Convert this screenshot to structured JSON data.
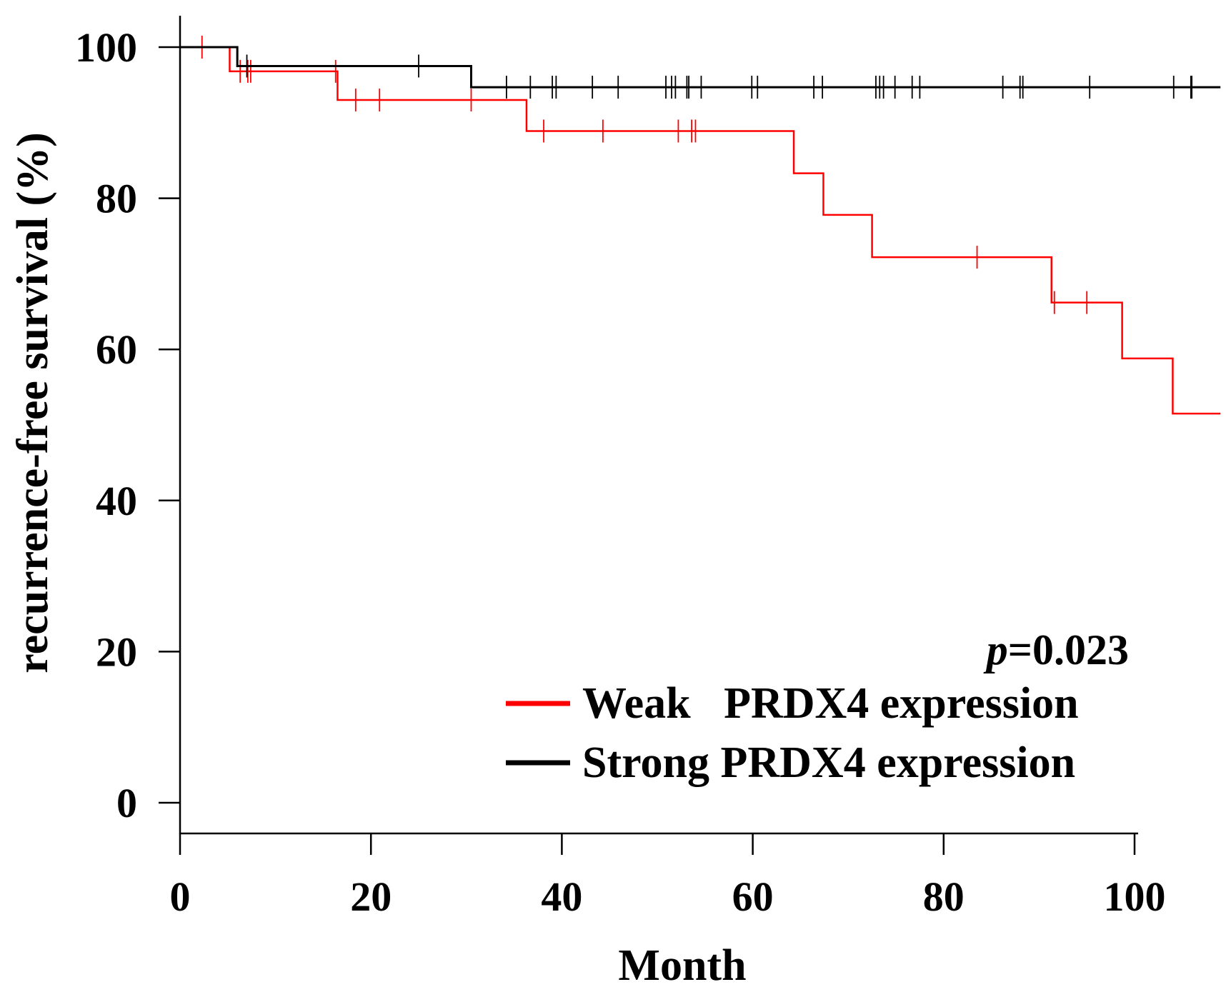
{
  "chart_data": {
    "type": "line",
    "step": true,
    "xlabel": "Month",
    "ylabel": "recurrence-free survival (%)",
    "xlim": [
      0,
      109
    ],
    "ylim": [
      -4,
      104
    ],
    "xticks": [
      "0",
      "20",
      "40",
      "60",
      "80",
      "100"
    ],
    "yticks": [
      "0",
      "20",
      "40",
      "60",
      "80",
      "100"
    ],
    "xtick_values": [
      0,
      20,
      40,
      60,
      80,
      100
    ],
    "ytick_values": [
      0,
      20,
      40,
      60,
      80,
      100
    ],
    "annotation": {
      "italic": "p",
      "text": "=0.023"
    },
    "legend_position": "bottom-right",
    "series": [
      {
        "name": "Weak   PRDX4 expression",
        "color": "#ff0000",
        "x": [
          0,
          5.2,
          16.5,
          36.3,
          64.3,
          67.4,
          72.5,
          91.3,
          98.7,
          104
        ],
        "y": [
          100,
          96.8,
          93.0,
          88.9,
          83.3,
          77.8,
          72.2,
          66.2,
          58.8,
          51.5
        ],
        "x_end": 109,
        "censored": [
          [
            2.3,
            100
          ],
          [
            6.3,
            96.8
          ],
          [
            7.1,
            96.8
          ],
          [
            7.4,
            96.8
          ],
          [
            16.3,
            96.8
          ],
          [
            18.4,
            93.0
          ],
          [
            20.9,
            93.0
          ],
          [
            30.5,
            93.0
          ],
          [
            38.1,
            88.9
          ],
          [
            44.3,
            88.9
          ],
          [
            52.2,
            88.9
          ],
          [
            53.6,
            88.9
          ],
          [
            54.0,
            88.9
          ],
          [
            83.5,
            72.2
          ],
          [
            91.6,
            66.2
          ],
          [
            95.0,
            66.2
          ]
        ]
      },
      {
        "name": "Strong PRDX4 expression",
        "color": "#000000",
        "x": [
          0,
          6.0,
          30.5
        ],
        "y": [
          100,
          97.5,
          94.7
        ],
        "x_end": 109,
        "censored": [
          [
            7.0,
            97.5
          ],
          [
            25.0,
            97.5
          ],
          [
            34.2,
            94.7
          ],
          [
            36.7,
            94.7
          ],
          [
            39.0,
            94.7
          ],
          [
            39.4,
            94.7
          ],
          [
            43.2,
            94.7
          ],
          [
            45.9,
            94.7
          ],
          [
            50.9,
            94.7
          ],
          [
            51.5,
            94.7
          ],
          [
            51.9,
            94.7
          ],
          [
            53.1,
            94.7
          ],
          [
            53.3,
            94.7
          ],
          [
            54.6,
            94.7
          ],
          [
            59.9,
            94.7
          ],
          [
            60.5,
            94.7
          ],
          [
            66.4,
            94.7
          ],
          [
            67.3,
            94.7
          ],
          [
            72.9,
            94.7
          ],
          [
            73.3,
            94.7
          ],
          [
            73.7,
            94.7
          ],
          [
            74.9,
            94.7
          ],
          [
            76.7,
            94.7
          ],
          [
            77.5,
            94.7
          ],
          [
            86.2,
            94.7
          ],
          [
            88.0,
            94.7
          ],
          [
            88.3,
            94.7
          ],
          [
            95.3,
            94.7
          ],
          [
            104.1,
            94.7
          ],
          [
            105.9,
            94.7
          ],
          [
            106.0,
            94.7
          ]
        ]
      }
    ]
  }
}
